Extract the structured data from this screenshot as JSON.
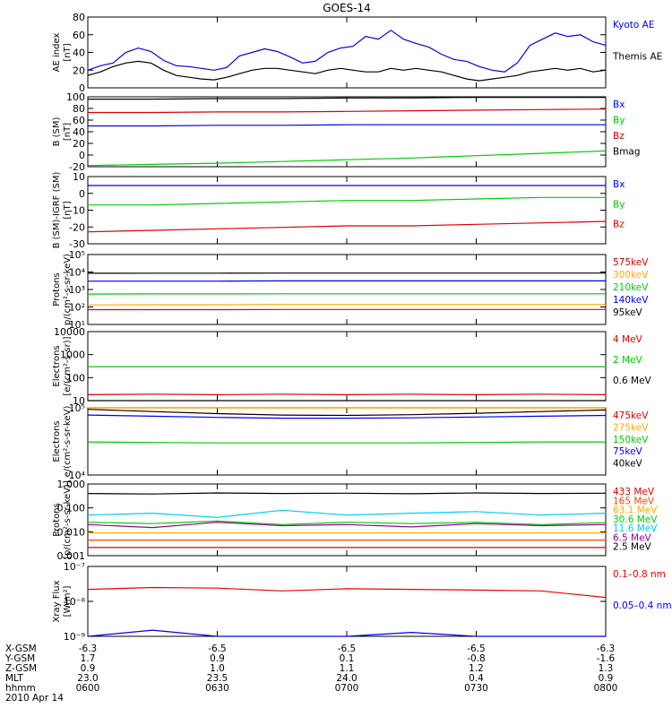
{
  "title": "GOES-14",
  "colors": {
    "black": "#000000",
    "blue": "#0000ee",
    "red": "#dd0000",
    "green": "#00cc00",
    "orange": "#ffaa00",
    "cyan": "#00ccee",
    "purple": "#990099",
    "lred": "#ff4400",
    "xrayred": "#ee0000"
  },
  "chart_data": [
    {
      "type": "line",
      "panel": "ae",
      "ylabel": "AE index",
      "yunit": "[nT]",
      "ylim": [
        0,
        80
      ],
      "yticks": [
        "0",
        "20",
        "40",
        "60",
        "80"
      ],
      "series": [
        {
          "name": "Kyoto AE",
          "color": "blue",
          "values": [
            20,
            25,
            28,
            40,
            45,
            41,
            31,
            25,
            24,
            22,
            20,
            23,
            36,
            40,
            44,
            41,
            35,
            28,
            30,
            40,
            45,
            47,
            58,
            55,
            65,
            55,
            50,
            46,
            38,
            32,
            30,
            24,
            20,
            18,
            28,
            48,
            55,
            62,
            58,
            60,
            52,
            48
          ]
        },
        {
          "name": "Themis AE",
          "color": "black",
          "values": [
            14,
            18,
            24,
            28,
            30,
            28,
            20,
            14,
            12,
            10,
            9,
            12,
            16,
            20,
            22,
            22,
            20,
            18,
            16,
            20,
            22,
            20,
            18,
            18,
            22,
            20,
            22,
            20,
            18,
            14,
            10,
            8,
            10,
            12,
            14,
            18,
            20,
            22,
            20,
            22,
            18,
            20
          ]
        }
      ]
    },
    {
      "type": "line",
      "panel": "bsm",
      "ylabel": "B (SM)",
      "yunit": "[nT]",
      "ylim": [
        -20,
        100
      ],
      "yticks": [
        "-20",
        "0",
        "20",
        "40",
        "60",
        "80",
        "100"
      ],
      "series": [
        {
          "name": "Bx",
          "color": "blue",
          "values": [
            50,
            50,
            51,
            51,
            52,
            52,
            52,
            52,
            52
          ]
        },
        {
          "name": "By",
          "color": "green",
          "values": [
            -18,
            -16,
            -14,
            -11,
            -8,
            -5,
            -1,
            3,
            7
          ]
        },
        {
          "name": "Bz",
          "color": "red",
          "values": [
            73,
            73,
            74,
            74,
            75,
            76,
            77,
            78,
            79
          ]
        },
        {
          "name": "Bmag",
          "color": "black",
          "values": [
            96,
            96,
            97,
            97,
            98,
            98,
            99,
            99,
            99
          ]
        }
      ]
    },
    {
      "type": "line",
      "panel": "bigrf",
      "ylabel": "B (SM)-IGRF (SM)",
      "yunit": "[nT]",
      "ylim": [
        -30,
        15
      ],
      "yticks": [
        "-30",
        "-20",
        "-10",
        "0",
        "10"
      ],
      "series": [
        {
          "name": "Bx",
          "color": "blue",
          "values": [
            9,
            9,
            9,
            9,
            9,
            9,
            9,
            9,
            9
          ]
        },
        {
          "name": "By",
          "color": "green",
          "values": [
            -4,
            -4,
            -3,
            -2,
            -1,
            -1,
            0,
            1,
            1
          ]
        },
        {
          "name": "Bz",
          "color": "red",
          "values": [
            -22,
            -21,
            -20,
            -19,
            -18,
            -18,
            -17,
            -16,
            -15
          ]
        }
      ]
    },
    {
      "type": "line",
      "panel": "protons1",
      "ylabel": "Protons",
      "yunit": "p/(cm²-s-sr-keV)",
      "log": true,
      "ylim": [
        10,
        100000
      ],
      "yticks": [
        "10¹",
        "10²",
        "10³",
        "10⁴",
        "10⁵"
      ],
      "series": [
        {
          "name": "575keV",
          "color": "red",
          "values": [
            70,
            70,
            70,
            72,
            72,
            72,
            72,
            72,
            72
          ]
        },
        {
          "name": "300keV",
          "color": "orange",
          "values": [
            130,
            135,
            135,
            140,
            140,
            140,
            140,
            140,
            140
          ]
        },
        {
          "name": "210keV",
          "color": "green",
          "values": [
            550,
            560,
            560,
            570,
            570,
            570,
            570,
            570,
            570
          ]
        },
        {
          "name": "140keV",
          "color": "blue",
          "values": [
            3000,
            3000,
            3000,
            3100,
            3100,
            3100,
            3100,
            3100,
            3100
          ]
        },
        {
          "name": "95keV",
          "color": "black",
          "values": [
            8500,
            8600,
            8600,
            8700,
            8700,
            8700,
            8700,
            8700,
            8700
          ]
        }
      ]
    },
    {
      "type": "line",
      "panel": "electrons1",
      "ylabel": "Electrons",
      "yunit": "[e/(cm²-s-sr)]",
      "log": true,
      "ylim": [
        10,
        10000
      ],
      "yticks": [
        "10",
        "100",
        "1000",
        "10000"
      ],
      "series": [
        {
          "name": "4 MeV",
          "color": "red",
          "values": [
            18,
            19,
            18,
            19,
            18,
            19,
            18,
            19,
            18
          ]
        },
        {
          "name": "2 MeV",
          "color": "green",
          "values": [
            300,
            300,
            300,
            300,
            300,
            300,
            300,
            300,
            300
          ]
        },
        {
          "name": "0.6 MeV",
          "color": "black",
          "values": [
            10,
            10,
            10,
            10,
            10,
            10,
            10,
            10,
            10
          ]
        }
      ]
    },
    {
      "type": "line",
      "panel": "electrons2",
      "ylabel": "Electrons",
      "yunit": "e/(cm²-s-sr-keV)",
      "log": true,
      "ylim": [
        10000,
        100000
      ],
      "yticks": [
        "10⁴",
        "10⁵"
      ],
      "series": [
        {
          "name": "475keV",
          "color": "red",
          "values": [
            100000,
            100000,
            100000,
            100000,
            100000,
            100000,
            100000,
            100000,
            100000
          ]
        },
        {
          "name": "275keV",
          "color": "orange",
          "values": [
            100000,
            100000,
            100000,
            100000,
            100000,
            100000,
            100000,
            100000,
            100000
          ]
        },
        {
          "name": "150keV",
          "color": "green",
          "values": [
            31000,
            30500,
            30000,
            30000,
            30000,
            30000,
            30500,
            31000,
            31000
          ]
        },
        {
          "name": "75keV",
          "color": "blue",
          "values": [
            78000,
            75000,
            72000,
            70000,
            70000,
            71000,
            73000,
            75000,
            77000
          ]
        },
        {
          "name": "40keV",
          "color": "black",
          "values": [
            95000,
            88000,
            82000,
            78000,
            77000,
            79000,
            83000,
            88000,
            93000
          ]
        }
      ]
    },
    {
      "type": "line",
      "panel": "protons2",
      "ylabel": "Protons",
      "yunit": "[p/(cm²-s-sr-keV)]",
      "log": true,
      "ylim": [
        0.001,
        1
      ],
      "yticks": [
        "0.001",
        "0.010",
        "0.100",
        "1.000"
      ],
      "series": [
        {
          "name": "433 MeV",
          "color": "red",
          "values": [
            0.0022,
            0.0022,
            0.0022,
            0.0022,
            0.0022,
            0.0022,
            0.0022,
            0.0022,
            0.0022
          ]
        },
        {
          "name": "165 MeV",
          "color": "lred",
          "values": [
            0.0045,
            0.0045,
            0.0045,
            0.0045,
            0.0045,
            0.0045,
            0.0045,
            0.0045,
            0.0045
          ]
        },
        {
          "name": "63.1 MeV",
          "color": "orange",
          "values": [
            0.009,
            0.009,
            0.009,
            0.009,
            0.009,
            0.009,
            0.009,
            0.009,
            0.009
          ]
        },
        {
          "name": "30.6 MeV",
          "color": "green",
          "values": [
            0.025,
            0.022,
            0.028,
            0.02,
            0.025,
            0.022,
            0.025,
            0.02,
            0.024
          ]
        },
        {
          "name": "11.6 MeV",
          "color": "cyan",
          "values": [
            0.05,
            0.06,
            0.04,
            0.08,
            0.05,
            0.06,
            0.07,
            0.05,
            0.06
          ]
        },
        {
          "name": "6.5 MeV",
          "color": "purple",
          "values": [
            0.02,
            0.015,
            0.025,
            0.018,
            0.02,
            0.016,
            0.022,
            0.018,
            0.02
          ]
        },
        {
          "name": "2.5 MeV",
          "color": "black",
          "values": [
            0.4,
            0.38,
            0.42,
            0.4,
            0.41,
            0.39,
            0.42,
            0.4,
            0.41
          ]
        }
      ]
    },
    {
      "type": "line",
      "panel": "xray",
      "ylabel": "Xray Flux",
      "yunit": "[W/m²]",
      "log": true,
      "ylim": [
        1e-09,
        1e-07
      ],
      "yticks": [
        "10⁻⁹",
        "10⁻⁸",
        "10⁻⁷"
      ],
      "series": [
        {
          "name": "0.1–0.8 nm",
          "color": "xrayred",
          "values": [
            2.2e-08,
            2.5e-08,
            2.4e-08,
            2e-08,
            2.3e-08,
            2.2e-08,
            2.1e-08,
            2e-08,
            1.3e-08
          ]
        },
        {
          "name": "0.05–0.4 nm",
          "color": "blue",
          "values": [
            1e-09,
            1.5e-09,
            1e-09,
            1e-09,
            1e-09,
            1.3e-09,
            1e-09,
            1e-09,
            1e-09
          ]
        }
      ]
    }
  ],
  "orbit": {
    "rows": [
      {
        "label": "X-GSM",
        "values": [
          "-6.3",
          "-6.5",
          "-6.5",
          "-6.5",
          "-6.3"
        ]
      },
      {
        "label": "Y-GSM",
        "values": [
          "1.7",
          "0.9",
          "0.1",
          "-0.8",
          "-1.6"
        ]
      },
      {
        "label": "Z-GSM",
        "values": [
          "0.9",
          "1.0",
          "1.1",
          "1.2",
          "1.3"
        ]
      },
      {
        "label": "MLT",
        "values": [
          "23.0",
          "23.5",
          "24.0",
          "0.4",
          "0.9"
        ]
      },
      {
        "label": "hhmm",
        "values": [
          "0600",
          "0630",
          "0700",
          "0730",
          "0800"
        ]
      }
    ],
    "date": "2010 Apr 14"
  }
}
